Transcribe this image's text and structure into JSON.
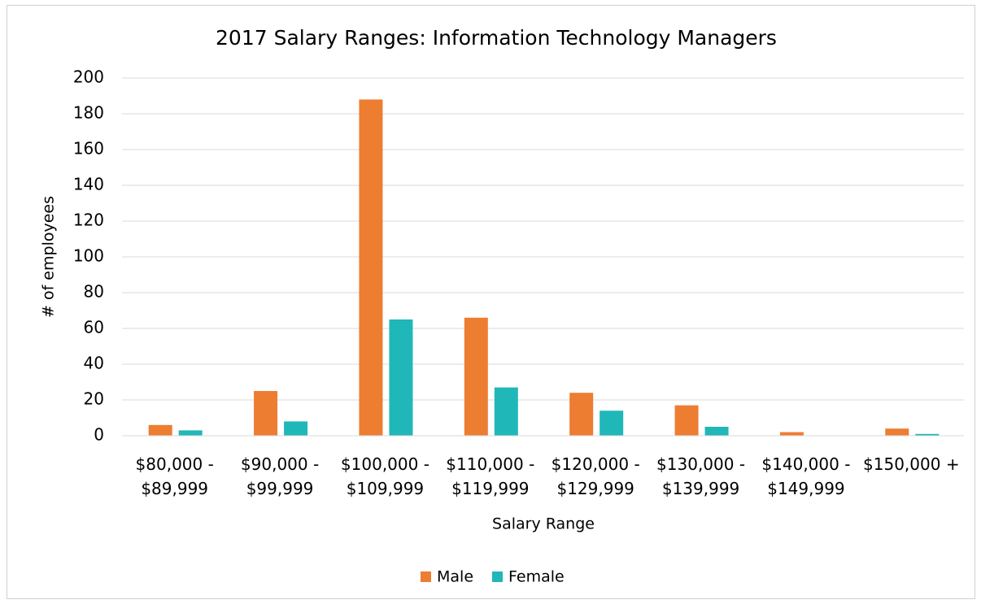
{
  "chart_data": {
    "type": "bar",
    "title": "2017 Salary Ranges: Information Technology Managers",
    "x_label": "Salary Range",
    "y_label": "# of employees",
    "categories": [
      "$80,000 - $89,999",
      "$90,000 - $99,999",
      "$100,000 - $109,999",
      "$110,000 - $119,999",
      "$120,000 - $129,999",
      "$130,000 - $139,999",
      "$140,000 - $149,999",
      "$150,000 +"
    ],
    "series": [
      {
        "name": "Male",
        "color": "#ed7d31",
        "values": [
          6,
          25,
          188,
          66,
          24,
          17,
          2,
          4
        ]
      },
      {
        "name": "Female",
        "color": "#20b7b9",
        "values": [
          3,
          8,
          65,
          27,
          14,
          5,
          0,
          1
        ]
      }
    ],
    "ylim": [
      0,
      200
    ],
    "yticks": [
      0,
      20,
      40,
      60,
      80,
      100,
      120,
      140,
      160,
      180,
      200
    ],
    "grid": true,
    "legend": "bottom"
  }
}
